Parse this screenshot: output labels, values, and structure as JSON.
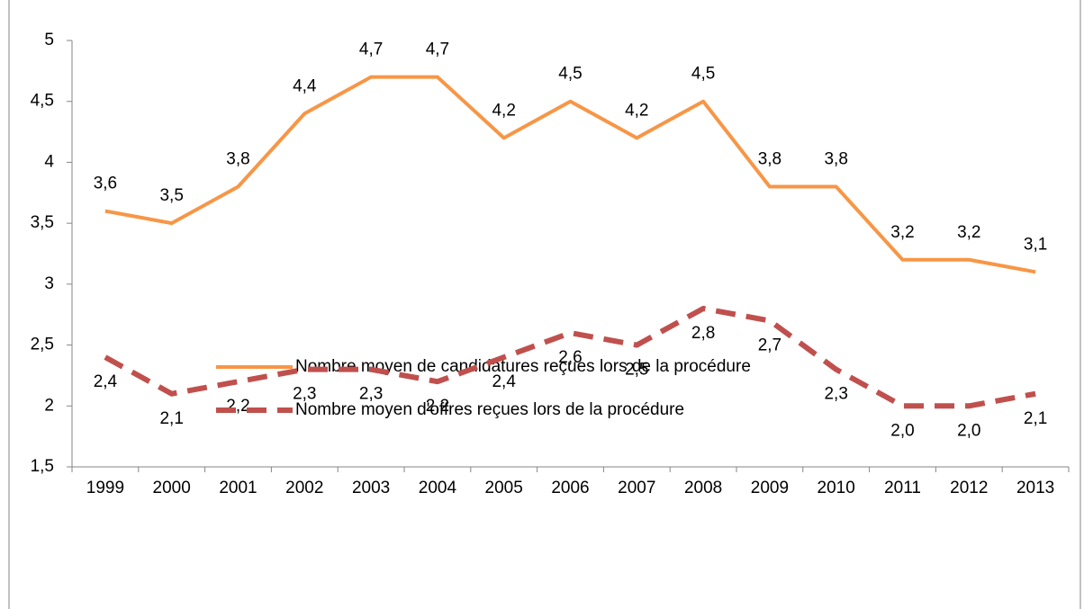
{
  "chart_data": {
    "type": "line",
    "categories": [
      "1999",
      "2000",
      "2001",
      "2002",
      "2003",
      "2004",
      "2005",
      "2006",
      "2007",
      "2008",
      "2009",
      "2010",
      "2011",
      "2012",
      "2013"
    ],
    "series": [
      {
        "name": "Nombre moyen de candidatures reçues lors de la procédure",
        "color": "#f79646",
        "dashed": false,
        "values": [
          3.6,
          3.5,
          3.8,
          4.4,
          4.7,
          4.7,
          4.2,
          4.5,
          4.2,
          4.5,
          3.8,
          3.8,
          3.2,
          3.2,
          3.1
        ],
        "value_labels": [
          "3,6",
          "3,5",
          "3,8",
          "4,4",
          "4,7",
          "4,7",
          "4,2",
          "4,5",
          "4,2",
          "4,5",
          "3,8",
          "3,8",
          "3,2",
          "3,2",
          "3,1"
        ]
      },
      {
        "name": "Nombre moyen d'offres reçues lors de la procédure",
        "color": "#c0504d",
        "dashed": true,
        "values": [
          2.4,
          2.1,
          2.2,
          2.3,
          2.3,
          2.2,
          2.4,
          2.6,
          2.5,
          2.8,
          2.7,
          2.3,
          2.0,
          2.0,
          2.1
        ],
        "value_labels": [
          "2,4",
          "2,1",
          "2,2",
          "2,3",
          "2,3",
          "2,2",
          "2,4",
          "2,6",
          "2,5",
          "2,8",
          "2,7",
          "2,3",
          "2,0",
          "2,0",
          "2,1"
        ]
      }
    ],
    "ylim": [
      1.5,
      5
    ],
    "yticks": [
      {
        "value": 1.5,
        "label": "1,5"
      },
      2,
      {
        "value": 2.5,
        "label": "2,5"
      },
      3,
      {
        "value": 3.5,
        "label": "3,5"
      },
      4,
      {
        "value": 4.5,
        "label": "4,5"
      },
      5
    ],
    "grid": false,
    "legend": "bottom"
  }
}
